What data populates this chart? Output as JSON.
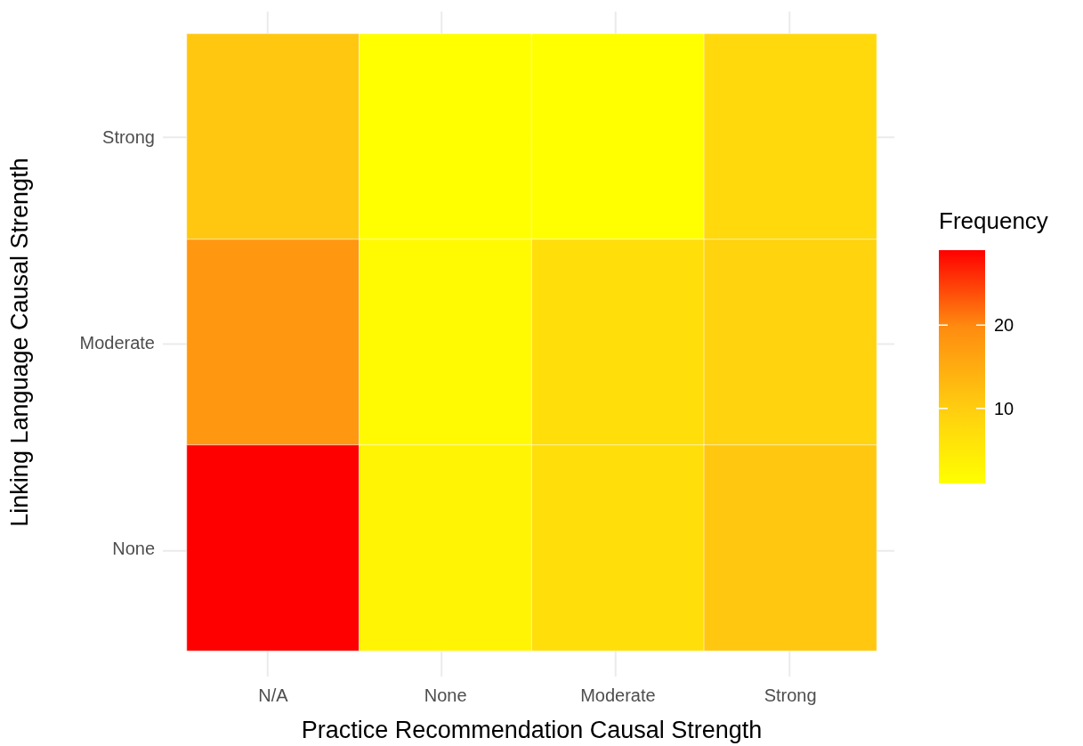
{
  "chart_data": {
    "type": "heatmap",
    "xlabel": "Practice Recommendation Causal Strength",
    "ylabel": "Linking Language Causal Strength",
    "clabel": "Frequency",
    "categories": [
      "N/A",
      "None",
      "Moderate",
      "Strong"
    ],
    "y_categories": [
      "Strong",
      "Moderate",
      "None"
    ],
    "cells": [
      [
        11,
        1,
        1,
        8
      ],
      [
        18,
        2,
        7,
        9
      ],
      [
        29,
        3,
        7,
        11
      ]
    ],
    "clim": [
      1,
      29
    ],
    "cticks": [
      10,
      20
    ],
    "grid": true
  }
}
